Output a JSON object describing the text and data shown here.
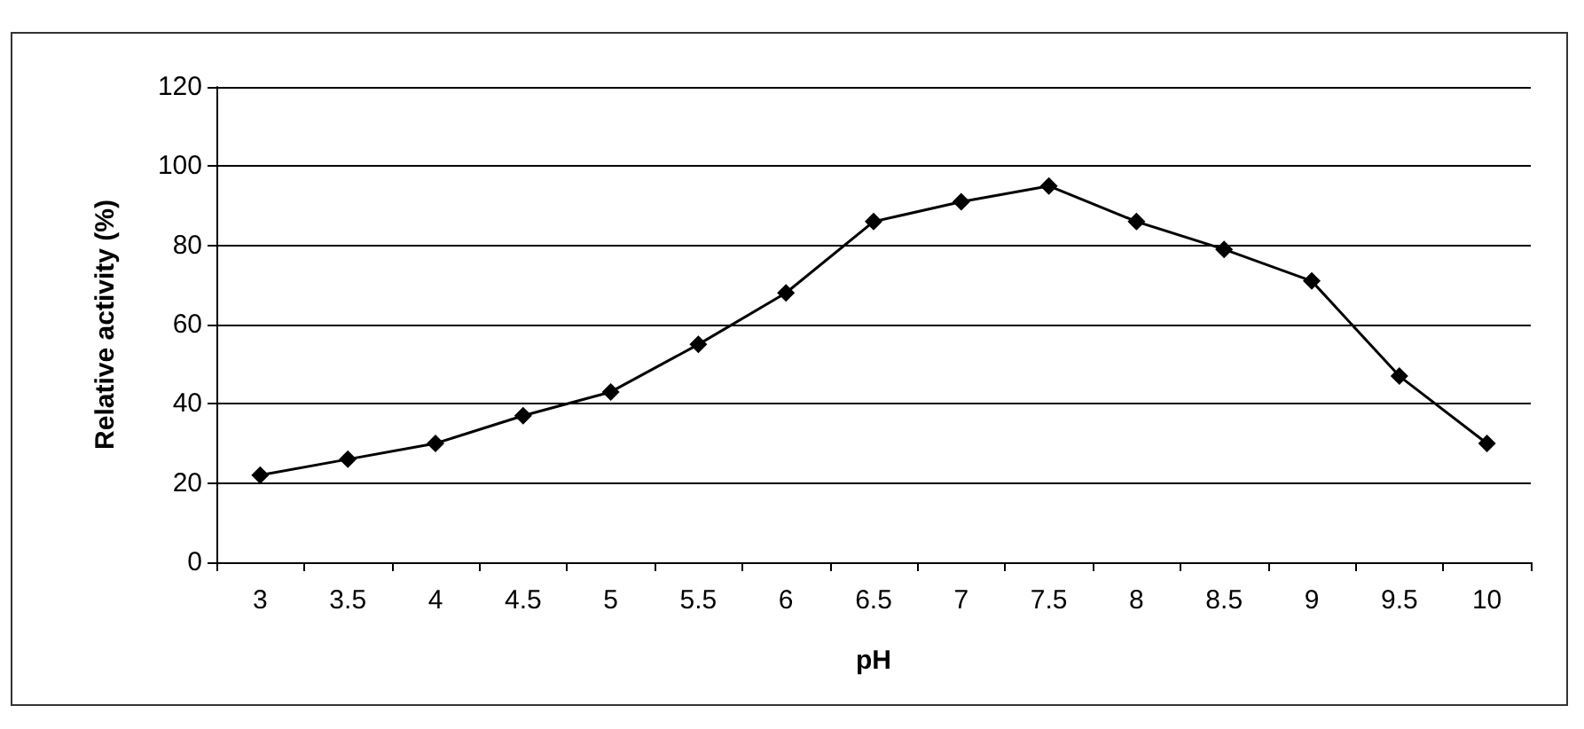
{
  "chart_data": {
    "type": "line",
    "xlabel": "pH",
    "ylabel": "Relative activity (%)",
    "categories": [
      "3",
      "3.5",
      "4",
      "4.5",
      "5",
      "5.5",
      "6",
      "6.5",
      "7",
      "7.5",
      "8",
      "8.5",
      "9",
      "9.5",
      "10"
    ],
    "series": [
      {
        "color": "#000000",
        "values": [
          22,
          26,
          30,
          37,
          43,
          55,
          68,
          86,
          91,
          95,
          86,
          79,
          71,
          47,
          30
        ]
      }
    ],
    "ylim": [
      0,
      120
    ],
    "yticks": [
      0,
      20,
      40,
      60,
      80,
      100,
      120
    ],
    "grid": "y",
    "marker": "diamond",
    "line_style": "solid"
  }
}
